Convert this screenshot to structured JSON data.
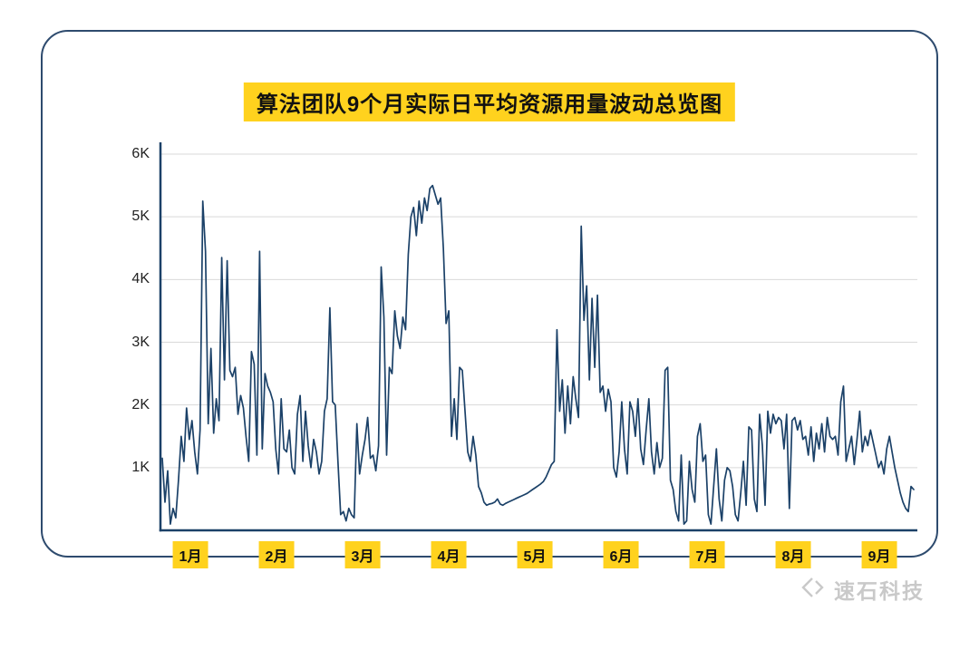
{
  "card": {
    "border_color": "#2e4b6e",
    "background": "#ffffff"
  },
  "chart_data": {
    "type": "line",
    "title": "算法团队9个月实际日平均资源用量波动总览图",
    "highlight_color": "#ffd21e",
    "line_color": "#1b4168",
    "axis_color": "#1b4168",
    "grid_color": "#d9d9d9",
    "grid": "horizontal",
    "legend": "none",
    "ylim": [
      0,
      6000
    ],
    "y_tick_labels": [
      "6K",
      "5K",
      "4K",
      "3K",
      "2K",
      "1K"
    ],
    "y_tick_values": [
      6000,
      5000,
      4000,
      3000,
      2000,
      1000
    ],
    "x_tick_labels": [
      "1月",
      "2月",
      "3月",
      "4月",
      "5月",
      "6月",
      "7月",
      "8月",
      "9月"
    ],
    "values": [
      1150,
      450,
      950,
      100,
      350,
      200,
      800,
      1500,
      1100,
      1950,
      1450,
      1750,
      1250,
      900,
      1600,
      5250,
      4450,
      1700,
      2900,
      1550,
      2100,
      1750,
      4350,
      2400,
      4300,
      2550,
      2450,
      2600,
      1850,
      2150,
      1950,
      1500,
      1100,
      2850,
      2650,
      1200,
      4450,
      1300,
      2500,
      2300,
      2200,
      2050,
      1300,
      900,
      2100,
      1300,
      1250,
      1600,
      1000,
      900,
      1850,
      2150,
      1100,
      1900,
      1350,
      1000,
      1450,
      1250,
      900,
      1100,
      1900,
      2100,
      3550,
      2050,
      2000,
      1100,
      250,
      300,
      150,
      350,
      250,
      200,
      1700,
      900,
      1200,
      1450,
      1800,
      1150,
      1200,
      950,
      1350,
      4200,
      3400,
      1200,
      2600,
      2500,
      3500,
      3100,
      2900,
      3400,
      3200,
      4400,
      5000,
      5150,
      4700,
      5250,
      4900,
      5300,
      5100,
      5450,
      5500,
      5350,
      5200,
      5300,
      4500,
      3300,
      3500,
      1500,
      2100,
      1450,
      2600,
      2550,
      1900,
      1250,
      1100,
      1500,
      1200,
      700,
      600,
      450,
      400,
      420,
      430,
      450,
      500,
      420,
      400,
      430,
      450,
      470,
      490,
      510,
      530,
      550,
      570,
      590,
      620,
      650,
      680,
      710,
      740,
      780,
      850,
      950,
      1050,
      1100,
      3200,
      1900,
      2400,
      1550,
      2300,
      1700,
      2450,
      2100,
      1800,
      4850,
      3350,
      3900,
      2400,
      3700,
      2600,
      3750,
      2200,
      2300,
      1900,
      2250,
      2050,
      1000,
      850,
      1250,
      2050,
      1300,
      900,
      2050,
      1900,
      1500,
      2100,
      1300,
      1050,
      1600,
      2100,
      1250,
      900,
      1400,
      1000,
      1150,
      2550,
      2600,
      800,
      650,
      300,
      150,
      1200,
      100,
      150,
      1100,
      650,
      450,
      1500,
      1700,
      1100,
      1200,
      250,
      100,
      700,
      1300,
      500,
      150,
      800,
      1000,
      950,
      700,
      250,
      150,
      600,
      1100,
      400,
      1650,
      1600,
      500,
      300,
      1850,
      1350,
      400,
      1900,
      1550,
      1850,
      1700,
      1800,
      1750,
      1300,
      1850,
      350,
      1750,
      1800,
      1600,
      1750,
      1450,
      1500,
      1200,
      1650,
      1100,
      1550,
      1300,
      1700,
      1250,
      1800,
      1500,
      1450,
      1500,
      1200,
      2050,
      2300,
      1100,
      1300,
      1500,
      1050,
      1450,
      1900,
      1250,
      1500,
      1350,
      1600,
      1400,
      1200,
      1000,
      1100,
      900,
      1300,
      1500,
      1250,
      1000,
      800,
      600,
      450,
      350,
      300,
      700,
      650
    ]
  },
  "watermark": {
    "text": "速石科技",
    "color": "#c9c9c9"
  }
}
